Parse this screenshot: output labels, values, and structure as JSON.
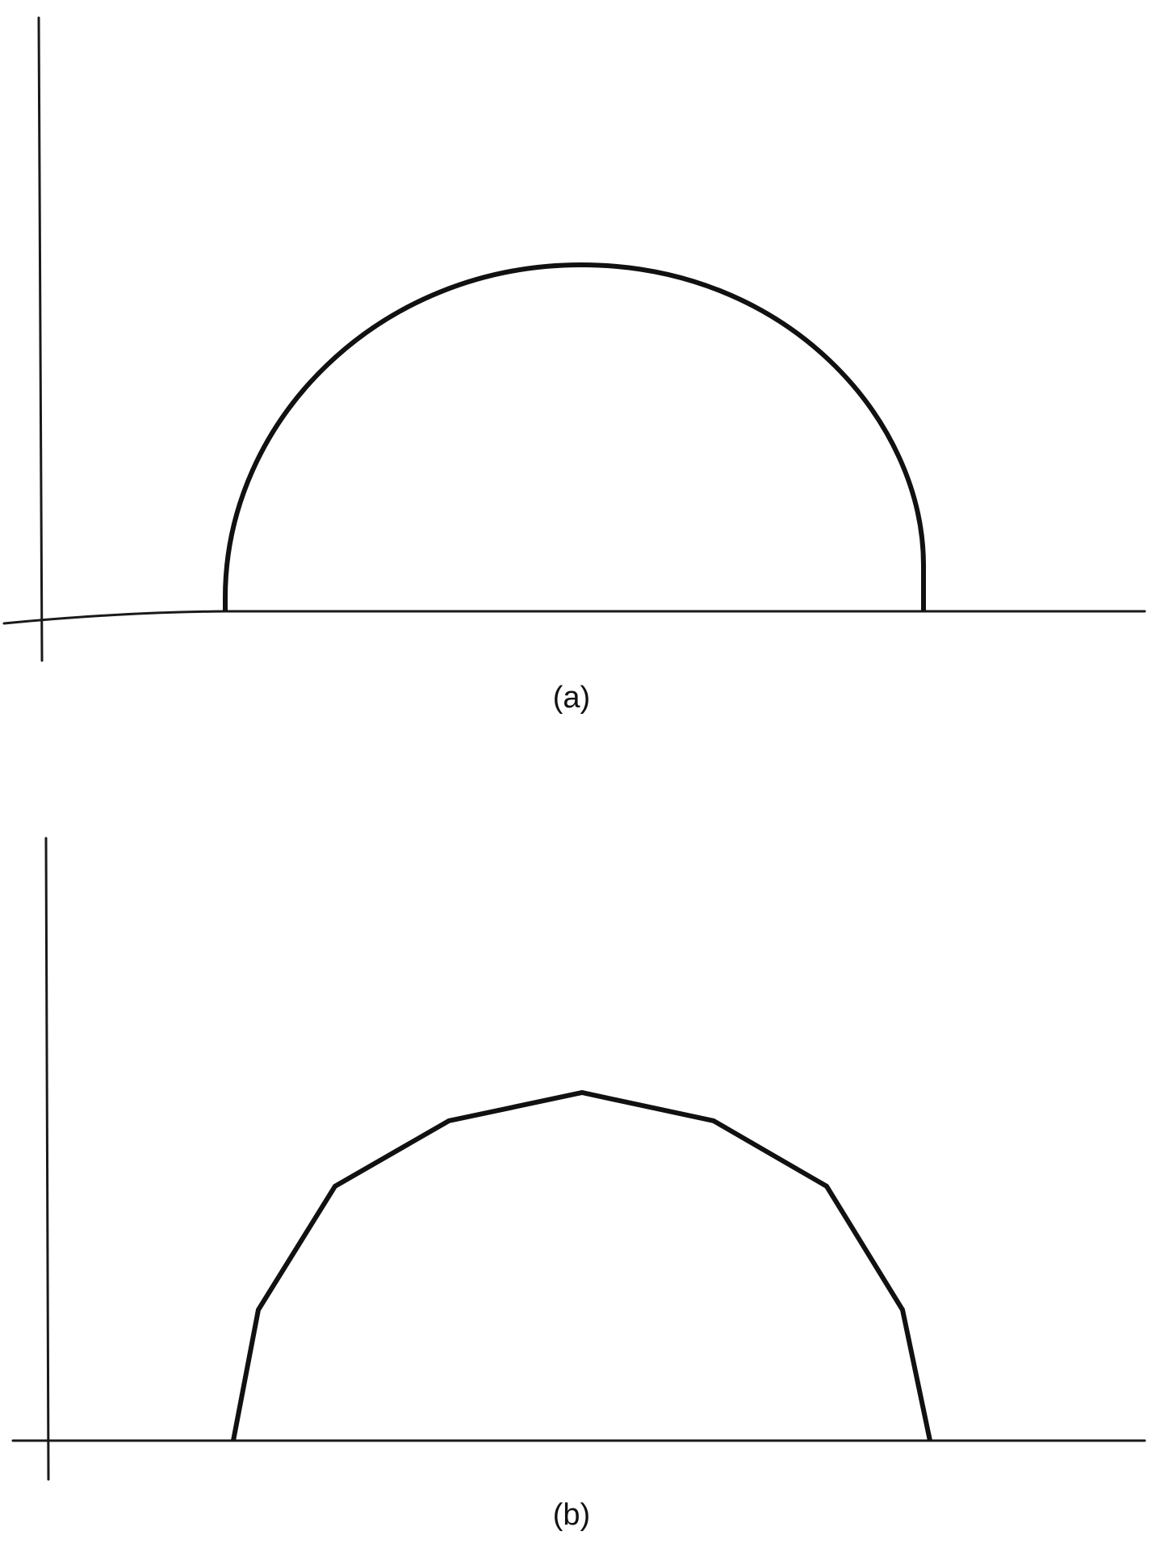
{
  "panels": [
    {
      "label": "(a)",
      "shape": "smooth semicircular arc"
    },
    {
      "label": "(b)",
      "shape": "piecewise-linear approximation of arc"
    }
  ],
  "colors": {
    "ink": "#111111",
    "background": "#ffffff"
  }
}
